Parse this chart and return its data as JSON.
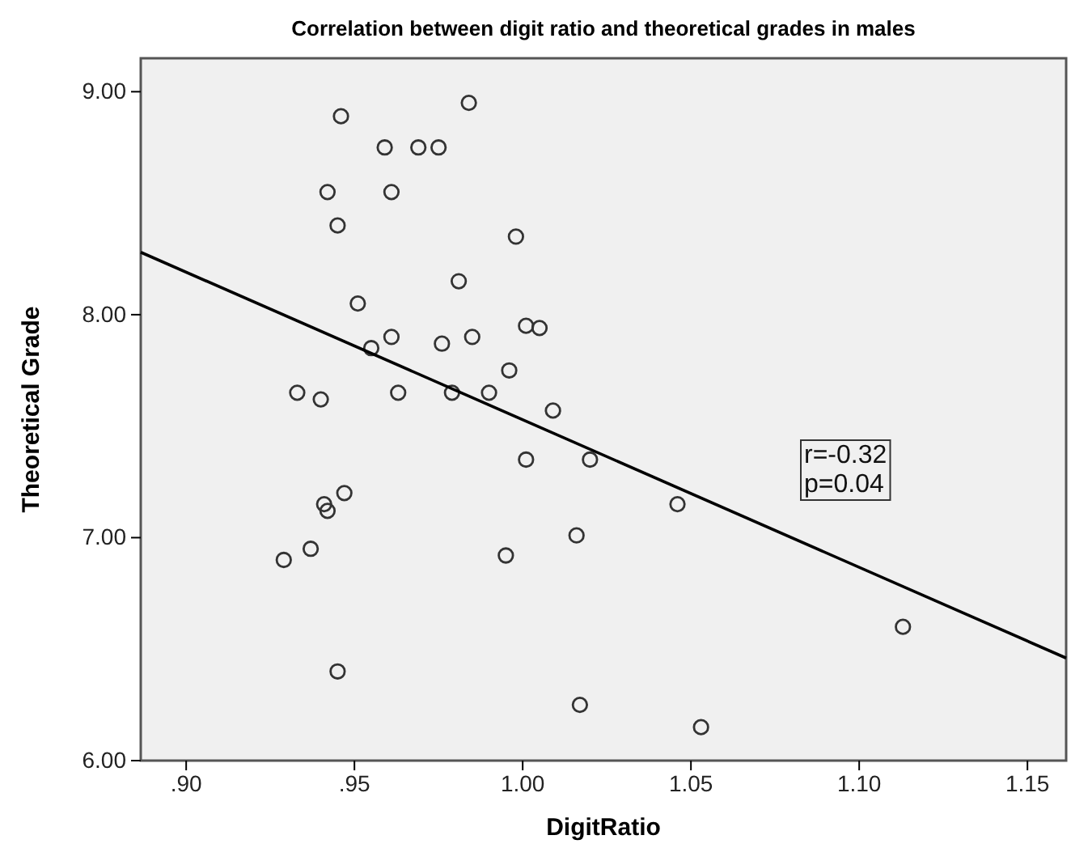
{
  "chart_data": {
    "type": "scatter",
    "title": "Correlation between digit ratio and theoretical grades in males",
    "xlabel": "DigitRatio",
    "ylabel": "Theoretical Grade",
    "xlim": [
      0.8865,
      1.1615
    ],
    "ylim": [
      6.0,
      9.15
    ],
    "xticks": [
      {
        "value": 0.9,
        "label": ".90"
      },
      {
        "value": 0.95,
        "label": ".95"
      },
      {
        "value": 1.0,
        "label": "1.00"
      },
      {
        "value": 1.05,
        "label": "1.05"
      },
      {
        "value": 1.1,
        "label": "1.10"
      },
      {
        "value": 1.15,
        "label": "1.15"
      }
    ],
    "yticks": [
      {
        "value": 6,
        "label": "6.00"
      },
      {
        "value": 7,
        "label": "7.00"
      },
      {
        "value": 8,
        "label": "8.00"
      },
      {
        "value": 9,
        "label": "9.00"
      }
    ],
    "grid": false,
    "marker": "circle",
    "series": [
      {
        "color": "#333333",
        "x": [
          0.946,
          0.984,
          0.959,
          0.969,
          0.975,
          0.942,
          0.961,
          0.945,
          0.998,
          0.981,
          0.951,
          1.001,
          1.005,
          0.961,
          0.976,
          0.985,
          0.955,
          0.996,
          0.933,
          0.963,
          0.979,
          0.99,
          0.94,
          1.009,
          1.001,
          1.02,
          0.947,
          0.941,
          0.942,
          1.016,
          0.937,
          0.929,
          0.995,
          0.945,
          1.017,
          1.046,
          1.113,
          1.053
        ],
        "values": [
          8.89,
          8.95,
          8.75,
          8.75,
          8.75,
          8.55,
          8.55,
          8.4,
          8.35,
          8.15,
          8.05,
          7.95,
          7.94,
          7.9,
          7.87,
          7.9,
          7.85,
          7.75,
          7.65,
          7.65,
          7.65,
          7.65,
          7.62,
          7.57,
          7.35,
          7.35,
          7.2,
          7.15,
          7.12,
          7.01,
          6.95,
          6.9,
          6.92,
          6.4,
          6.25,
          7.15,
          6.6,
          6.15
        ]
      },
      {
        "type": "line",
        "color": "#000000",
        "marker": "none",
        "x": [
          0.8865,
          1.1615
        ],
        "values": [
          8.28,
          6.46
        ]
      }
    ],
    "annotations": [
      "r=-0.32\np=0.04"
    ]
  }
}
